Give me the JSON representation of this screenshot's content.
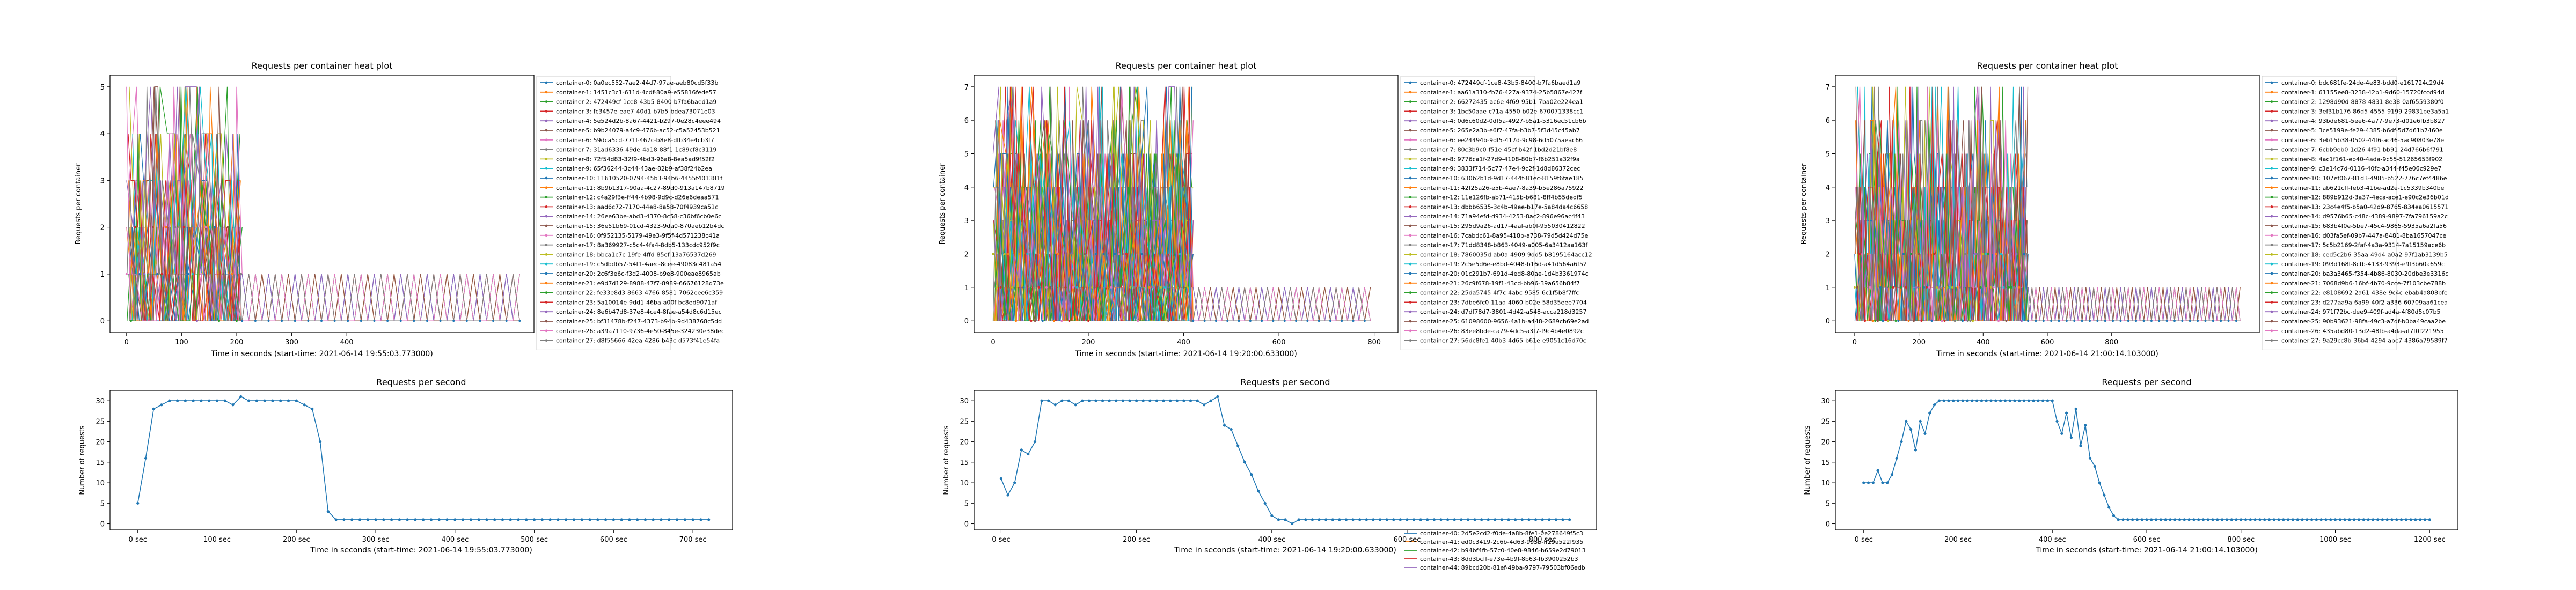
{
  "panels": [
    {
      "heat_title": "Requests per container heat plot",
      "heat_ylabel": "Requests per container",
      "heat_xlabel": "Time in seconds (start-time: 2021-06-14 19:55:03.773000)",
      "rps_title": "Requests per second",
      "rps_ylabel": "Number of requests",
      "rps_xlabel": "Time in seconds (start-time: 2021-06-14 19:55:03.773000)",
      "legend": [
        "container-0: 0a0ec552-7ae2-44d7-97ae-aeb80cd5f33b",
        "container-1: 1451c3c1-611d-4cdf-80a9-e55816fede57",
        "container-2: 472449cf-1ce8-43b5-8400-b7fa6baed1a9",
        "container-3: fc3457e-eae7-40d1-b7b5-bdea73071e03",
        "container-4: 5e524d2b-8a67-4421-b297-0e28c4eee494",
        "container-5: b9b24079-a4c9-476b-ac52-c5a52453b521",
        "container-6: 59dca5cd-771f-467c-b8e8-dfb34e4cb3f7",
        "container-7: 31ad6336-49de-4a18-88f1-1c89cf8c3119",
        "container-8: 72f54d83-32f9-4bd3-96a8-8ea5ad9f52f2",
        "container-9: 65f36244-3c44-43ae-82b9-af38f24b2ea",
        "container-10: 11610520-0794-45b3-94b6-4455f401381f",
        "container-11: 8b9b1317-90aa-4c27-89d0-913a147b8719",
        "container-12: c4a29f3e-ff44-4b98-9d9c-d26e6deaa571",
        "container-13: aad6c72-7170-44e8-8a58-70f4939ca51c",
        "container-14: 26ee63be-abd3-4370-8c58-c36bf6cb0e6c",
        "container-15: 36e51b69-01cd-4323-9da0-870aeb12b4dc",
        "container-16: 0f952135-5179-49e3-9f5f-4d571238c41a",
        "container-17: 8a369927-c5c4-4fa4-8db5-133cdc952f9c",
        "container-18: bbca1c7c-19fe-4ffd-85cf-13a76537d269",
        "container-19: c5dbdb57-54f1-4aec-8cee-49083c481a54",
        "container-20: 2c6f3e6c-f3d2-4008-b9e8-900eae8965ab",
        "container-21: e9d7d129-8988-47f7-8989-66676128d73e",
        "container-22: fe33e8d3-8663-4766-8581-7062eee6c359",
        "container-23: 5a10014e-9dd1-46ba-a00f-bc8ed9071af",
        "container-24: 8e6b47d8-37e8-4ce4-8fae-a54d8c6d15ec",
        "container-25: bf31478b-f247-4373-b94b-9d438768c5dd",
        "container-26: a39a7110-9736-4e50-845e-324230e38dec",
        "container-27: d8f55666-42ea-4286-b43c-d573f41e54fa"
      ],
      "legend_extra": []
    },
    {
      "heat_title": "Requests per container heat plot",
      "heat_ylabel": "Requests per container",
      "heat_xlabel": "Time in seconds (start-time: 2021-06-14 19:20:00.633000)",
      "rps_title": "Requests per second",
      "rps_ylabel": "Number of requests",
      "rps_xlabel": "Time in seconds (start-time: 2021-06-14 19:20:00.633000)",
      "legend": [
        "container-0: 472449cf-1ce8-43b5-8400-b7fa6baed1a9",
        "container-1: aa61a310-fb76-427a-9374-25b5867e427f",
        "container-2: 66272435-ac6e-4f69-95b1-7ba02e224ea1",
        "container-3: 1bc50aae-c71a-4550-b02e-670071338cc1",
        "container-4: 0d6c60d2-0df5a-4927-b5a1-5316ec51cb6b",
        "container-5: 265e2a3b-e6f7-47fa-b3b7-5f3d45c45ab7",
        "container-6: ee24494b-9df5-417d-9c98-6d5075aeac66",
        "container-7: 80c3b9c0-f51e-45cf-b42f-1bd2d21bf8e8",
        "container-8: 9776ca1f-27d9-4108-80b7-f6b251a32f9a",
        "container-9: 3833f714-5c77-47e4-9c2f-1d8d86372cec",
        "container-10: 630b2b1d-9d17-444f-81ec-8159f6fae185",
        "container-11: 42f25a26-e5b-4ae7-8a39-b5e286a75922",
        "container-12: 11e126fb-ab71-415b-b681-8ff4b55dedf5",
        "container-13: dbbb6535-3c4b-49ee-b17e-5a84da4c6658",
        "container-14: 71a94efd-d934-4253-8ac2-896e96ac4f43",
        "container-15: 295d9a26-ad17-4aaf-ab0f-955030412822",
        "container-16: 7cabdc61-8a95-418b-a738-79d5d424d75e",
        "container-17: 71dd8348-b863-4049-a005-6a3412aa163f",
        "container-18: 7860035d-ab0a-4909-9dd5-b8195164acc12",
        "container-19: 2c5e5d6e-e8bd-4048-b16d-a41d564a6f52",
        "container-20: 01c291b7-691d-4ed8-80ae-1d4b3361974c",
        "container-21: 26c9f678-19f1-43cd-bb96-39a656b84f7",
        "container-22: 25da5745-4f7c-4abc-9585-6c1f5b8f7ffc",
        "container-23: 7dbe6fc0-11ad-4060-b02e-58d35eee7704",
        "container-24: d7df78d7-3801-4d42-a548-acca218d3257",
        "container-25: 61098600-9656-4a1b-a448-2689cb69e2ad",
        "container-26: 83ee8bde-ca79-4dc5-a3f7-f9c4b4e0892c",
        "container-27: 56dc8fe1-40b3-4d65-b61e-e9051c16d70c"
      ],
      "legend_extra": [
        "container-40: 2d5e2cd2-f0de-4a8b-8fe1-0e278649f5c3",
        "container-41: ed0c3419-2c6b-4d63-993b-ff29a522f935",
        "container-42: b94bf4fb-57c0-40e8-9846-b659e2d79013",
        "container-43: 8dd3bcff-e73e-4b9f-8b63-fb3900252b3",
        "container-44: 89bcd20b-81ef-49ba-9797-79503bf06edb"
      ]
    },
    {
      "heat_title": "Requests per container heat plot",
      "heat_ylabel": "Requests per container",
      "heat_xlabel": "Time in seconds (start-time: 2021-06-14 21:00:14.103000)",
      "rps_title": "Requests per second",
      "rps_ylabel": "Number of requests",
      "rps_xlabel": "Time in seconds (start-time: 2021-06-14 21:00:14.103000)",
      "legend": [
        "container-0: bdc681fe-24de-4e83-bdd0-e161724c29d4",
        "container-1: 61155ee8-3238-42b1-9d60-15720fccd94d",
        "container-2: 1298d90d-8878-4831-8e38-0af6559380f0",
        "container-3: 3ef31b176-86d5-4555-9199-29831be3a5a1",
        "container-4: 93bde681-5ee6-4a77-9e73-d01e6fb3b827",
        "container-5: 3ce5199e-fe29-4385-b6df-5d7d61b7460e",
        "container-6: 3eb15b38-0502-44f6-ac46-5ac90803e78e",
        "container-7: 6cbb9eb0-1d26-4f91-bb91-24d766b6f791",
        "container-8: 4ac1f161-eb40-4ada-9c55-51265653f902",
        "container-9: c3e14c7d-0116-40fc-a344-f45e06c929e7",
        "container-10: 107ef067-81d3-4985-b522-776c7ef4486e",
        "container-11: ab621cff-feb3-41be-ad2e-1c5339b340be",
        "container-12: 889b912d-3a37-4eca-ace1-e90c2e36b01d",
        "container-13: 23c4e4f5-b5a0-42d9-8765-834ea0615571",
        "container-14: d9576b65-c48c-4389-9897-7fa796159a2c",
        "container-15: 683b4f0e-5be7-45c4-9865-5935a6a2fa56",
        "container-16: d03fa5ef-09b7-447a-8481-8ba1657047ce",
        "container-17: 5c5b2169-2faf-4a3a-9314-7a15159ace6b",
        "container-18: ced5c2b6-35aa-49d4-a0a2-97f1ab3139b5",
        "container-19: 093d168f-8cfb-4133-9393-e9f3b60a659c",
        "container-20: ba3a3465-f354-4b86-8030-20dbe3e3316c",
        "container-21: 7068d9b6-16bf-4b70-9cce-7f103cbe788b",
        "container-22: e8108692-2a61-438e-9c4c-ebab4a808bfe",
        "container-23: d277aa9a-6a99-40f2-a336-60709aa61cea",
        "container-24: 971f72bc-dee9-409f-ad4a-4f80d5c07b5",
        "container-25: 90b93621-98fa-49c3-a7df-b0ba49caa2be",
        "container-26: 435abd80-13d2-48fb-a4da-af7f0f221955",
        "container-27: 9a29cc8b-36b4-4294-abc7-4386a79589f7"
      ],
      "legend_extra": []
    }
  ],
  "chart_data": [
    {
      "type": "line",
      "title": "Requests per container heat plot",
      "xlabel": "Time in seconds (start-time: 2021-06-14 19:55:03.773000)",
      "ylabel": "Requests per container",
      "xlim": [
        -30,
        740
      ],
      "ylim": [
        -0.25,
        5.25
      ],
      "xticks": [
        0,
        100,
        200,
        300,
        400
      ],
      "yticks": [
        0,
        1,
        2,
        3,
        4,
        5
      ],
      "legend_position": "right",
      "active_until": 210,
      "tail_until": 720,
      "max_value": 5,
      "num_series": 28
    },
    {
      "type": "line",
      "title": "Requests per second",
      "xlabel": "Time in seconds (start-time: 2021-06-14 19:55:03.773000)",
      "ylabel": "Number of requests",
      "xlim": [
        -35,
        750
      ],
      "ylim": [
        -1.5,
        32.5
      ],
      "xticks": [
        0,
        100,
        200,
        300,
        400,
        500,
        600,
        700
      ],
      "xtick_labels": [
        "0 sec",
        "100 sec",
        "200 sec",
        "300 sec",
        "400 sec",
        "500 sec",
        "600 sec",
        "700 sec"
      ],
      "yticks": [
        0,
        5,
        10,
        15,
        20,
        25,
        30
      ],
      "x": [
        0,
        10,
        20,
        30,
        40,
        50,
        60,
        70,
        80,
        90,
        100,
        110,
        120,
        130,
        140,
        150,
        160,
        170,
        180,
        190,
        200,
        210,
        220,
        230,
        240,
        250,
        260,
        270,
        280,
        290,
        300,
        310,
        320,
        330,
        340,
        350,
        360,
        370,
        380,
        390,
        400,
        410,
        420,
        430,
        440,
        450,
        460,
        470,
        480,
        490,
        500,
        510,
        520,
        530,
        540,
        550,
        560,
        570,
        580,
        590,
        600,
        610,
        620,
        630,
        640,
        650,
        660,
        670,
        680,
        690,
        700,
        710,
        720
      ],
      "y": [
        5,
        16,
        28,
        29,
        30,
        30,
        30,
        30,
        30,
        30,
        30,
        30,
        29,
        31,
        30,
        30,
        30,
        30,
        30,
        30,
        30,
        29,
        28,
        20,
        3,
        1,
        1,
        1,
        1,
        1,
        1,
        1,
        1,
        1,
        1,
        1,
        1,
        1,
        1,
        1,
        1,
        1,
        1,
        1,
        1,
        1,
        1,
        1,
        1,
        1,
        1,
        1,
        1,
        1,
        1,
        1,
        1,
        1,
        1,
        1,
        1,
        1,
        1,
        1,
        1,
        1,
        1,
        1,
        1,
        1,
        1,
        1,
        1
      ]
    },
    {
      "type": "line",
      "title": "Requests per container heat plot",
      "xlabel": "Time in seconds (start-time: 2021-06-14 19:20:00.633000)",
      "ylabel": "Requests per container",
      "xlim": [
        -40,
        850
      ],
      "ylim": [
        -0.35,
        7.35
      ],
      "xticks": [
        0,
        200,
        400,
        600,
        800
      ],
      "yticks": [
        0,
        1,
        2,
        3,
        4,
        5,
        6,
        7
      ],
      "legend_position": "right",
      "active_until": 420,
      "tail_until": 800,
      "max_value": 7,
      "num_series": 45
    },
    {
      "type": "line",
      "title": "Requests per second",
      "xlabel": "Time in seconds (start-time: 2021-06-14 19:20:00.633000)",
      "ylabel": "Number of requests",
      "xlim": [
        -40,
        880
      ],
      "ylim": [
        -1.5,
        32.5
      ],
      "xticks": [
        0,
        200,
        400,
        600,
        800
      ],
      "xtick_labels": [
        "0 sec",
        "200 sec",
        "400 sec",
        "600 sec",
        "800 sec"
      ],
      "yticks": [
        0,
        5,
        10,
        15,
        20,
        25,
        30
      ],
      "x": [
        0,
        10,
        20,
        30,
        40,
        50,
        60,
        70,
        80,
        90,
        100,
        110,
        120,
        130,
        140,
        150,
        160,
        170,
        180,
        190,
        200,
        210,
        220,
        230,
        240,
        250,
        260,
        270,
        280,
        290,
        300,
        310,
        320,
        330,
        340,
        350,
        360,
        370,
        380,
        390,
        400,
        410,
        420,
        430,
        440,
        450,
        460,
        470,
        480,
        490,
        500,
        510,
        520,
        530,
        540,
        550,
        560,
        570,
        580,
        590,
        600,
        610,
        620,
        630,
        640,
        650,
        660,
        670,
        680,
        690,
        700,
        710,
        720,
        730,
        740,
        750,
        760,
        770,
        780,
        790,
        800,
        810,
        820,
        830,
        840
      ],
      "y": [
        11,
        7,
        10,
        18,
        17,
        20,
        30,
        30,
        29,
        30,
        30,
        29,
        30,
        30,
        30,
        30,
        30,
        30,
        30,
        30,
        30,
        30,
        30,
        30,
        30,
        30,
        30,
        30,
        30,
        30,
        29,
        30,
        31,
        24,
        23,
        19,
        15,
        12,
        8,
        5,
        2,
        1,
        1,
        0,
        1,
        1,
        1,
        1,
        1,
        1,
        1,
        1,
        1,
        1,
        1,
        1,
        1,
        1,
        1,
        1,
        1,
        1,
        1,
        1,
        1,
        1,
        1,
        1,
        1,
        1,
        1,
        1,
        1,
        1,
        1,
        1,
        1,
        1,
        1,
        1,
        1,
        1,
        1,
        1,
        1
      ]
    },
    {
      "type": "line",
      "title": "Requests per container heat plot",
      "xlabel": "Time in seconds (start-time: 2021-06-14 21:00:14.103000)",
      "ylabel": "Requests per container",
      "xlim": [
        -60,
        1260
      ],
      "ylim": [
        -0.35,
        7.35
      ],
      "xticks": [
        0,
        200,
        400,
        600,
        800
      ],
      "yticks": [
        0,
        1,
        2,
        3,
        4,
        5,
        6,
        7
      ],
      "legend_position": "right",
      "active_until": 540,
      "tail_until": 1200,
      "max_value": 7,
      "num_series": 28
    },
    {
      "type": "line",
      "title": "Requests per second",
      "xlabel": "Time in seconds (start-time: 2021-06-14 21:00:14.103000)",
      "ylabel": "Number of requests",
      "xlim": [
        -60,
        1260
      ],
      "ylim": [
        -1.5,
        32.5
      ],
      "xticks": [
        0,
        200,
        400,
        600,
        800,
        1000,
        1200
      ],
      "xtick_labels": [
        "0 sec",
        "200 sec",
        "400 sec",
        "600 sec",
        "800 sec",
        "1000 sec",
        "1200 sec"
      ],
      "yticks": [
        0,
        5,
        10,
        15,
        20,
        25,
        30
      ],
      "x": [
        0,
        10,
        20,
        30,
        40,
        50,
        60,
        70,
        80,
        90,
        100,
        110,
        120,
        130,
        140,
        150,
        160,
        170,
        180,
        190,
        200,
        210,
        220,
        230,
        240,
        250,
        260,
        270,
        280,
        290,
        300,
        310,
        320,
        330,
        340,
        350,
        360,
        370,
        380,
        390,
        400,
        410,
        420,
        430,
        440,
        450,
        460,
        470,
        480,
        490,
        500,
        510,
        520,
        530,
        540,
        550,
        560,
        570,
        580,
        590,
        600,
        610,
        620,
        630,
        640,
        650,
        660,
        670,
        680,
        690,
        700,
        710,
        720,
        730,
        740,
        750,
        760,
        770,
        780,
        790,
        800,
        810,
        820,
        830,
        840,
        850,
        860,
        870,
        880,
        890,
        900,
        910,
        920,
        930,
        940,
        950,
        960,
        970,
        980,
        990,
        1000,
        1010,
        1020,
        1030,
        1040,
        1050,
        1060,
        1070,
        1080,
        1090,
        1100,
        1110,
        1120,
        1130,
        1140,
        1150,
        1160,
        1170,
        1180,
        1190,
        1200
      ],
      "y": [
        10,
        10,
        10,
        13,
        10,
        10,
        12,
        16,
        20,
        25,
        23,
        18,
        25,
        22,
        27,
        29,
        30,
        30,
        30,
        30,
        30,
        30,
        30,
        30,
        30,
        30,
        30,
        30,
        30,
        30,
        30,
        30,
        30,
        30,
        30,
        30,
        30,
        30,
        30,
        30,
        30,
        25,
        22,
        27,
        21,
        28,
        19,
        24,
        16,
        14,
        10,
        7,
        4,
        2,
        1,
        1,
        1,
        1,
        1,
        1,
        1,
        1,
        1,
        1,
        1,
        1,
        1,
        1,
        1,
        1,
        1,
        1,
        1,
        1,
        1,
        1,
        1,
        1,
        1,
        1,
        1,
        1,
        1,
        1,
        1,
        1,
        1,
        1,
        1,
        1,
        1,
        1,
        1,
        1,
        1,
        1,
        1,
        1,
        1,
        1,
        1,
        1,
        1,
        1,
        1,
        1,
        1,
        1,
        1,
        1,
        1,
        1,
        1,
        1,
        1,
        1,
        1,
        1,
        1,
        1,
        1
      ]
    }
  ],
  "colors": {
    "palette": [
      "#1f77b4",
      "#ff7f0e",
      "#2ca02c",
      "#d62728",
      "#9467bd",
      "#8c564b",
      "#e377c2",
      "#7f7f7f",
      "#bcbd22",
      "#17becf"
    ],
    "rps_line": "#1f77b4"
  }
}
